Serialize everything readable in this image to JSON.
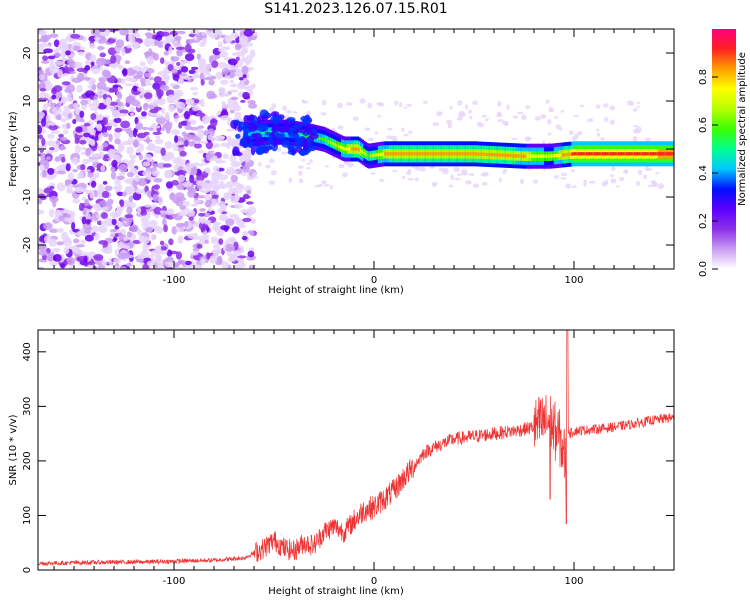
{
  "title": "S141.2023.126.07.15.R01",
  "chart_data": [
    {
      "type": "heatmap",
      "xlabel": "Height of straight line (km)",
      "ylabel": "Frequency (Hz)",
      "xlim": [
        -168,
        150
      ],
      "ylim": [
        -25,
        25
      ],
      "x_ticks": [
        -100,
        0,
        100
      ],
      "y_ticks": [
        -20,
        -10,
        0,
        10,
        20
      ],
      "colorbar": {
        "label": "Normalized spectral amplitude",
        "range": [
          0,
          1
        ],
        "ticks": [
          0,
          0.2,
          0.4,
          0.6,
          0.8
        ],
        "colors": [
          "#ffffff",
          "#c99cf2",
          "#8d2fe8",
          "#5a00ff",
          "#0010ff",
          "#00c8ff",
          "#00ff90",
          "#3cff00",
          "#b8ff00",
          "#ffff00",
          "#ffa000",
          "#ff2020",
          "#ff0080"
        ]
      },
      "ridge": {
        "description_points": [
          [
            -65,
            3
          ],
          [
            -55,
            3.5
          ],
          [
            -45,
            3.5
          ],
          [
            -35,
            3
          ],
          [
            -25,
            2
          ],
          [
            -15,
            0
          ],
          [
            -8,
            0
          ],
          [
            -3,
            -1.5
          ],
          [
            5,
            -1
          ],
          [
            20,
            -1
          ],
          [
            50,
            -1
          ],
          [
            75,
            -1.5
          ],
          [
            88,
            -1.5
          ],
          [
            100,
            -1
          ],
          [
            150,
            -1
          ]
        ],
        "amplitude": [
          0.35,
          0.5,
          0.45,
          0.55,
          0.6,
          0.75,
          0.85,
          0.6,
          0.8,
          0.85,
          0.85,
          0.8,
          0.7,
          0.9,
          0.95
        ]
      }
    },
    {
      "type": "line",
      "xlabel": "Height of straight line (km)",
      "ylabel": "SNR (10 * v/v)",
      "xlim": [
        -168,
        150
      ],
      "ylim": [
        0,
        440
      ],
      "x_ticks": [
        -100,
        0,
        100
      ],
      "y_ticks": [
        0,
        100,
        200,
        300,
        400
      ],
      "series": [
        {
          "color": "#ee3333",
          "x": [
            -168,
            -140,
            -110,
            -80,
            -65,
            -55,
            -50,
            -45,
            -40,
            -35,
            -30,
            -25,
            -20,
            -15,
            -10,
            -5,
            0,
            5,
            10,
            15,
            20,
            25,
            30,
            40,
            50,
            60,
            70,
            75,
            80,
            85,
            88,
            90,
            93,
            96,
            97,
            98,
            100,
            110,
            120,
            130,
            140,
            150
          ],
          "y": [
            12,
            14,
            15,
            18,
            22,
            40,
            55,
            40,
            35,
            50,
            45,
            70,
            80,
            70,
            90,
            110,
            115,
            130,
            145,
            170,
            190,
            215,
            225,
            240,
            245,
            250,
            255,
            258,
            262,
            270,
            275,
            258,
            240,
            200,
            260,
            250,
            255,
            258,
            262,
            268,
            275,
            280
          ]
        }
      ]
    }
  ]
}
